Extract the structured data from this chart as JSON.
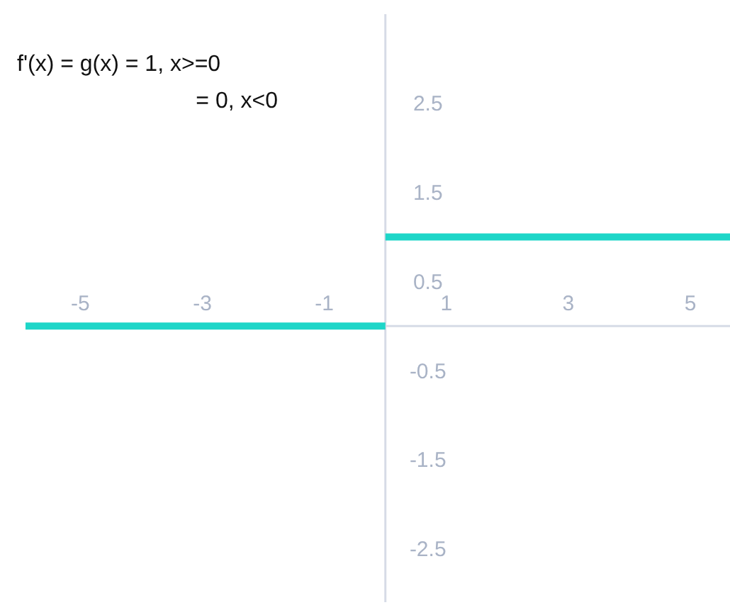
{
  "chart_data": {
    "type": "line",
    "annotations": [
      "f'(x) = g(x) = 1, x>=0",
      "= 0, x<0"
    ],
    "series": [
      {
        "color": "#1ed6c8",
        "x": [
          -5.9,
          0
        ],
        "values": [
          0,
          0
        ]
      },
      {
        "color": "#1ed6c8",
        "x": [
          0,
          5.65
        ],
        "values": [
          1,
          1
        ]
      }
    ],
    "xlim": [
      -5.9,
      5.65
    ],
    "xticks": [
      -5,
      -3,
      -1,
      1,
      3,
      5
    ],
    "ylim": [
      -3.1,
      3.5
    ],
    "yticks": [
      2.5,
      1.5,
      0.5,
      -0.5,
      -1.5,
      -2.5
    ],
    "grid": false,
    "marker": "none",
    "line_style": "solid"
  }
}
